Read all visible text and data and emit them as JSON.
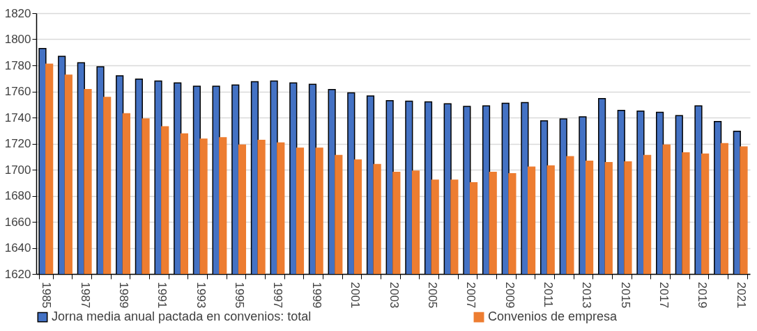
{
  "chart_data": {
    "type": "bar",
    "categories": [
      "1985",
      null,
      "1987",
      null,
      "1989",
      null,
      "1991",
      null,
      "1993",
      null,
      "1995",
      null,
      "1997",
      null,
      "1999",
      null,
      "2001",
      null,
      "2003",
      null,
      "2005",
      null,
      "2007",
      null,
      "2009",
      null,
      "2011",
      null,
      "2013",
      null,
      "2015",
      null,
      "2017",
      null,
      "2019",
      null,
      "2021"
    ],
    "series": [
      {
        "name": "Jorna media anual pactada en convenios: total",
        "color": "#4472c4",
        "values": [
          1793,
          1787,
          1782,
          1779,
          1772,
          1769.5,
          1768,
          1766.5,
          1764,
          1764,
          1765,
          1767.5,
          1768,
          1766.5,
          1765.5,
          1761.5,
          1759,
          1756.5,
          1753,
          1752.5,
          1752,
          1750.5,
          1748.5,
          1749,
          1751,
          1751.5,
          1737.5,
          1739,
          1740.5,
          1754.5,
          1745.5,
          1745,
          1744,
          1741.5,
          1749,
          1737,
          1729.5
        ]
      },
      {
        "name": "Convenios de empresa",
        "color": "#ed7d31",
        "values": [
          1781,
          1772.5,
          1761.5,
          1755.5,
          1743,
          1739,
          1733,
          1727.5,
          1723.5,
          1724.5,
          1719,
          1722.5,
          1720.5,
          1716.5,
          1716.5,
          1711,
          1707.5,
          1704,
          1698,
          1699,
          1692,
          1692,
          1690,
          1698,
          1697,
          1702,
          1703,
          1710,
          1706.5,
          1705.5,
          1706,
          1711,
          1719,
          1713,
          1712,
          1720,
          1717.5
        ]
      }
    ],
    "ylim": [
      1620,
      1820
    ],
    "yticks": [
      1620,
      1640,
      1660,
      1680,
      1700,
      1720,
      1740,
      1760,
      1780,
      1800,
      1820
    ],
    "grid": "y",
    "legend": "bottom"
  }
}
